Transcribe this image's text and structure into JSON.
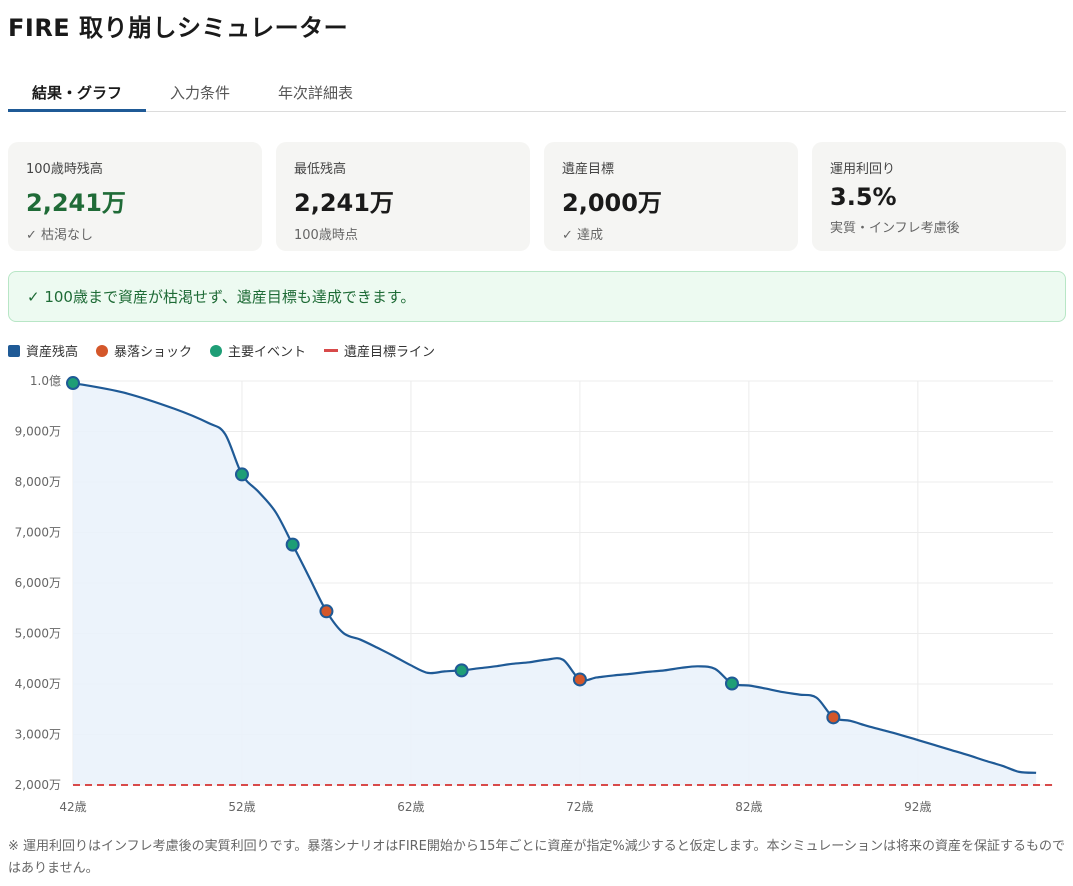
{
  "app_title": "FIRE 取り崩しシミュレーター",
  "tabs": [
    {
      "label": "結果・グラフ",
      "active": true
    },
    {
      "label": "入力条件",
      "active": false
    },
    {
      "label": "年次詳細表",
      "active": false
    }
  ],
  "cards": [
    {
      "label": "100歳時残高",
      "value": "2,241万",
      "sub": "✓ 枯渇なし"
    },
    {
      "label": "最低残高",
      "value": "2,241万",
      "sub": "100歳時点"
    },
    {
      "label": "遺産目標",
      "value": "2,000万",
      "sub": "✓ 達成"
    },
    {
      "label": "運用利回り",
      "value": "3.5%",
      "sub": "実質・インフレ考慮後"
    }
  ],
  "notice": "✓ 100歳まで資産が枯渇せず、遺産目標も達成できます。",
  "legend": {
    "balance": "資産残高",
    "crash": "暴落ショック",
    "event": "主要イベント",
    "target": "遺産目標ライン"
  },
  "colors": {
    "balance": "#1f5a96",
    "crash": "#d4572a",
    "event": "#1e9e76",
    "target": "#d84a4a",
    "accent_green": "#1f6b37"
  },
  "chart_data": {
    "type": "area",
    "title": "",
    "xlabel": "",
    "ylabel": "",
    "x_unit": "歳",
    "xlim": [
      42,
      100
    ],
    "ylim": [
      2000,
      10000
    ],
    "y_unit": "万円",
    "y_tick_values": [
      2000,
      3000,
      4000,
      5000,
      6000,
      7000,
      8000,
      9000,
      10000
    ],
    "y_tick_labels": [
      "2,000万",
      "3,000万",
      "4,000万",
      "5,000万",
      "6,000万",
      "7,000万",
      "8,000万",
      "9,000万",
      "1.0億"
    ],
    "x_tick_labels": [
      "42歳",
      "52歳",
      "62歳",
      "72歳",
      "82歳",
      "92歳"
    ],
    "x_tick_values": [
      42,
      52,
      62,
      72,
      82,
      92
    ],
    "grid": true,
    "series": [
      {
        "name": "資産残高",
        "points": [
          [
            42,
            9960
          ],
          [
            45,
            9770
          ],
          [
            48,
            9450
          ],
          [
            50,
            9170
          ],
          [
            51,
            8950
          ],
          [
            52,
            8150
          ],
          [
            53,
            7800
          ],
          [
            54,
            7400
          ],
          [
            55,
            6760
          ],
          [
            56,
            6100
          ],
          [
            57,
            5440
          ],
          [
            58,
            5010
          ],
          [
            59,
            4880
          ],
          [
            60,
            4720
          ],
          [
            61,
            4550
          ],
          [
            62,
            4370
          ],
          [
            63,
            4220
          ],
          [
            64,
            4250
          ],
          [
            65,
            4270
          ],
          [
            66,
            4310
          ],
          [
            67,
            4350
          ],
          [
            68,
            4400
          ],
          [
            69,
            4430
          ],
          [
            70,
            4480
          ],
          [
            71,
            4480
          ],
          [
            72,
            4090
          ],
          [
            73,
            4130
          ],
          [
            74,
            4170
          ],
          [
            75,
            4200
          ],
          [
            76,
            4240
          ],
          [
            77,
            4270
          ],
          [
            78,
            4320
          ],
          [
            79,
            4350
          ],
          [
            80,
            4300
          ],
          [
            81,
            4010
          ],
          [
            82,
            3970
          ],
          [
            83,
            3910
          ],
          [
            84,
            3840
          ],
          [
            85,
            3790
          ],
          [
            86,
            3730
          ],
          [
            87,
            3340
          ],
          [
            88,
            3270
          ],
          [
            89,
            3170
          ],
          [
            90,
            3080
          ],
          [
            91,
            2990
          ],
          [
            92,
            2890
          ],
          [
            93,
            2790
          ],
          [
            94,
            2690
          ],
          [
            95,
            2590
          ],
          [
            96,
            2480
          ],
          [
            97,
            2380
          ],
          [
            98,
            2260
          ],
          [
            99,
            2241
          ]
        ]
      },
      {
        "name": "遺産目標ライン",
        "value": 2000
      }
    ],
    "markers": [
      {
        "kind": "event",
        "x": 42,
        "y": 9960
      },
      {
        "kind": "event",
        "x": 52,
        "y": 8150
      },
      {
        "kind": "event",
        "x": 55,
        "y": 6760
      },
      {
        "kind": "crash",
        "x": 57,
        "y": 5440
      },
      {
        "kind": "event",
        "x": 65,
        "y": 4270
      },
      {
        "kind": "crash",
        "x": 72,
        "y": 4090
      },
      {
        "kind": "event",
        "x": 81,
        "y": 4010
      },
      {
        "kind": "crash",
        "x": 87,
        "y": 3340
      }
    ]
  },
  "footnote": "※ 運用利回りはインフレ考慮後の実質利回りです。暴落シナリオはFIRE開始から15年ごとに資産が指定%減少すると仮定します。本シミュレーションは将来の資産を保証するものではありません。"
}
